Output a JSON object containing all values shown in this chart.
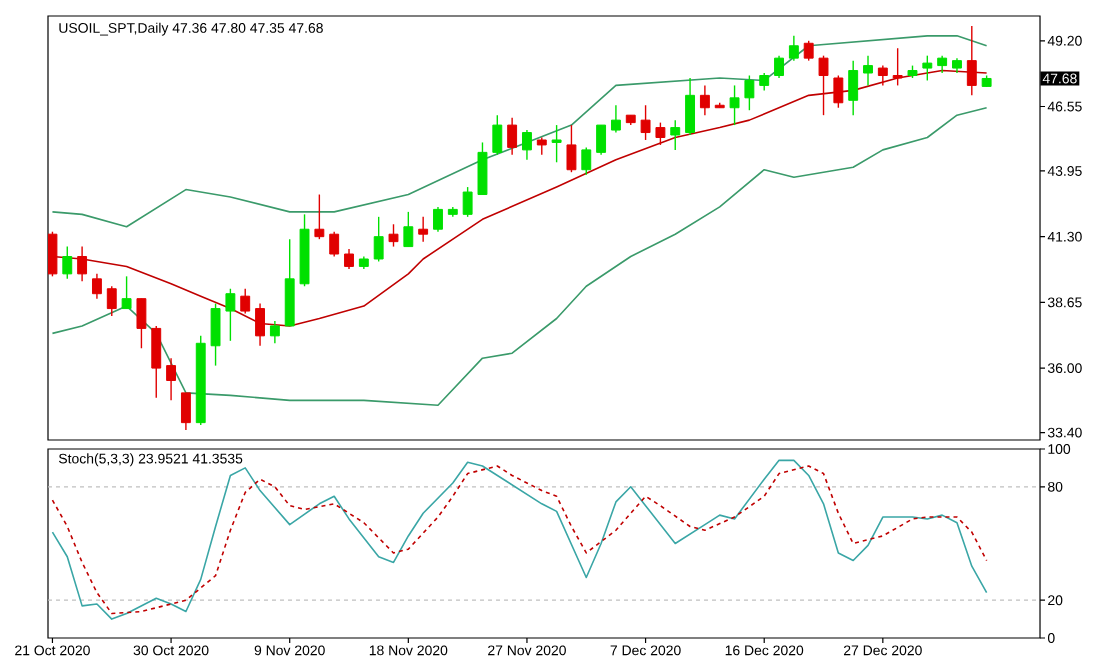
{
  "chart_data": [
    {
      "type": "candlestick",
      "title": "USOIL_SPT,Daily 47.36 47.80 47.35 47.68",
      "tick_labels": "y",
      "categories": [
        null,
        null,
        null,
        null,
        null,
        null,
        null,
        null,
        null,
        null,
        null,
        null,
        null,
        null,
        null,
        null,
        null,
        null,
        null,
        null,
        null,
        null,
        null,
        null,
        null,
        null,
        null,
        null,
        null,
        null,
        null,
        null,
        null,
        null,
        null,
        null,
        null,
        null,
        null,
        null,
        null,
        null,
        null,
        null,
        null,
        null,
        null,
        null,
        null,
        null,
        null,
        null,
        null,
        null,
        null,
        null,
        null,
        null,
        null,
        null,
        null,
        null,
        null,
        null
      ],
      "ylim": [
        33.1,
        50.2
      ],
      "yticks": [
        {
          "value": 49.2,
          "label": "49.20"
        },
        {
          "value": 46.55,
          "label": "46.55"
        },
        {
          "value": 43.95,
          "label": "43.95"
        },
        {
          "value": 41.3,
          "label": "41.30"
        },
        {
          "value": 38.65,
          "label": "38.65"
        },
        {
          "value": 36.0,
          "label": "36.00"
        },
        {
          "value": 33.4,
          "label": "33.40"
        }
      ],
      "ohlc": [
        [
          41.4,
          41.5,
          39.7,
          39.8
        ],
        [
          39.8,
          40.9,
          39.6,
          40.5
        ],
        [
          40.5,
          40.9,
          39.5,
          39.8
        ],
        [
          39.6,
          39.8,
          38.8,
          39.0
        ],
        [
          39.2,
          39.3,
          38.1,
          38.4
        ],
        [
          38.4,
          39.7,
          38.4,
          38.8
        ],
        [
          38.8,
          38.8,
          36.8,
          37.6
        ],
        [
          37.6,
          37.7,
          34.8,
          36.0
        ],
        [
          36.1,
          36.4,
          34.7,
          35.5
        ],
        [
          35.0,
          35.0,
          33.5,
          33.8
        ],
        [
          33.8,
          37.3,
          33.7,
          37.0
        ],
        [
          36.9,
          38.6,
          36.1,
          38.4
        ],
        [
          38.3,
          39.2,
          37.1,
          39.0
        ],
        [
          38.9,
          39.2,
          38.2,
          38.3
        ],
        [
          38.4,
          38.6,
          36.9,
          37.3
        ],
        [
          37.3,
          37.9,
          37.0,
          37.7
        ],
        [
          37.7,
          41.2,
          37.7,
          39.6
        ],
        [
          39.4,
          42.2,
          39.3,
          41.6
        ],
        [
          41.6,
          43.0,
          41.2,
          41.3
        ],
        [
          41.4,
          41.5,
          40.5,
          40.6
        ],
        [
          40.6,
          40.8,
          40.0,
          40.1
        ],
        [
          40.1,
          40.5,
          40.0,
          40.4
        ],
        [
          40.4,
          42.1,
          40.3,
          41.3
        ],
        [
          41.4,
          41.8,
          40.9,
          41.1
        ],
        [
          40.9,
          42.3,
          40.9,
          41.7
        ],
        [
          41.6,
          42.1,
          41.1,
          41.4
        ],
        [
          41.6,
          42.5,
          41.5,
          42.4
        ],
        [
          42.2,
          42.5,
          42.1,
          42.4
        ],
        [
          42.2,
          43.3,
          42.1,
          43.1
        ],
        [
          43.0,
          45.1,
          43.0,
          44.7
        ],
        [
          44.7,
          46.2,
          44.6,
          45.8
        ],
        [
          45.8,
          46.1,
          44.6,
          44.9
        ],
        [
          44.8,
          45.6,
          44.4,
          45.5
        ],
        [
          45.2,
          45.3,
          44.6,
          45.0
        ],
        [
          45.1,
          45.8,
          44.3,
          45.2
        ],
        [
          45.0,
          45.8,
          43.9,
          44.0
        ],
        [
          44.0,
          44.9,
          43.8,
          44.8
        ],
        [
          44.7,
          45.8,
          44.6,
          45.8
        ],
        [
          45.6,
          46.6,
          45.5,
          46.0
        ],
        [
          46.2,
          46.2,
          45.8,
          45.9
        ],
        [
          46.0,
          46.6,
          45.2,
          45.5
        ],
        [
          45.7,
          45.9,
          45.0,
          45.3
        ],
        [
          45.4,
          46.0,
          44.8,
          45.7
        ],
        [
          45.5,
          47.7,
          45.4,
          47.0
        ],
        [
          47.0,
          47.4,
          46.2,
          46.5
        ],
        [
          46.6,
          46.7,
          46.5,
          46.5
        ],
        [
          46.5,
          47.4,
          45.8,
          46.9
        ],
        [
          46.9,
          47.8,
          46.4,
          47.6
        ],
        [
          47.4,
          47.9,
          47.2,
          47.8
        ],
        [
          47.8,
          48.6,
          47.7,
          48.5
        ],
        [
          48.5,
          49.4,
          48.4,
          49.0
        ],
        [
          49.1,
          49.2,
          48.4,
          48.5
        ],
        [
          48.5,
          48.6,
          46.2,
          47.8
        ],
        [
          47.7,
          47.8,
          46.5,
          46.7
        ],
        [
          46.8,
          48.4,
          46.2,
          48.0
        ],
        [
          47.9,
          48.6,
          47.4,
          48.2
        ],
        [
          48.1,
          48.2,
          47.4,
          47.8
        ],
        [
          47.8,
          48.9,
          47.4,
          47.7
        ],
        [
          47.8,
          48.2,
          47.7,
          48.0
        ],
        [
          48.1,
          48.6,
          47.6,
          48.3
        ],
        [
          48.2,
          48.6,
          47.9,
          48.5
        ],
        [
          48.1,
          48.5,
          47.9,
          48.4
        ],
        [
          48.4,
          49.8,
          47.0,
          47.4
        ],
        [
          47.36,
          47.8,
          47.35,
          47.68
        ]
      ],
      "colors": [
        "#e00000",
        "#00e000",
        "#e00000",
        "#e00000",
        "#e00000",
        "#00e000",
        "#e00000",
        "#e00000",
        "#e00000",
        "#e00000",
        "#00e000",
        "#00e000",
        "#00e000",
        "#e00000",
        "#e00000",
        "#00e000",
        "#00e000",
        "#00e000",
        "#e00000",
        "#e00000",
        "#e00000",
        "#00e000",
        "#00e000",
        "#e00000",
        "#00e000",
        "#e00000",
        "#00e000",
        "#00e000",
        "#00e000",
        "#00e000",
        "#00e000",
        "#e00000",
        "#00e000",
        "#e00000",
        "#00e000",
        "#e00000",
        "#00e000",
        "#00e000",
        "#00e000",
        "#e00000",
        "#e00000",
        "#e00000",
        "#00e000",
        "#00e000",
        "#e00000",
        "#e00000",
        "#00e000",
        "#00e000",
        "#00e000",
        "#00e000",
        "#00e000",
        "#e00000",
        "#e00000",
        "#e00000",
        "#00e000",
        "#00e000",
        "#e00000",
        "#e00000",
        "#00e000",
        "#00e000",
        "#00e000",
        "#00e000",
        "#e00000",
        "#00e000"
      ],
      "series": [
        {
          "type": "line",
          "color": "#3a9a6a",
          "values": [
            42.3,
            null,
            42.2,
            null,
            null,
            41.7,
            null,
            null,
            null,
            43.2,
            null,
            null,
            42.9,
            null,
            null,
            null,
            42.3,
            null,
            null,
            42.3,
            null,
            null,
            null,
            null,
            43.0,
            null,
            null,
            null,
            null,
            44.4,
            null,
            null,
            null,
            null,
            null,
            45.8,
            null,
            null,
            47.4,
            null,
            null,
            null,
            null,
            null,
            null,
            47.7,
            null,
            null,
            47.6,
            null,
            null,
            49.0,
            null,
            null,
            null,
            49.2,
            null,
            null,
            null,
            49.4,
            null,
            49.4,
            null,
            49.0
          ]
        },
        {
          "type": "line",
          "color": "#c00000",
          "values": [
            40.5,
            null,
            40.4,
            null,
            null,
            40.1,
            null,
            null,
            39.4,
            null,
            38.9,
            null,
            38.4,
            null,
            37.8,
            null,
            37.7,
            null,
            38.0,
            null,
            null,
            38.5,
            null,
            null,
            39.8,
            40.4,
            null,
            null,
            null,
            42.0,
            null,
            null,
            null,
            null,
            43.3,
            null,
            null,
            null,
            44.4,
            null,
            null,
            null,
            45.3,
            null,
            null,
            45.7,
            null,
            46.0,
            null,
            null,
            null,
            47.0,
            null,
            null,
            47.2,
            null,
            null,
            47.7,
            null,
            null,
            48.0,
            null,
            null,
            47.9
          ]
        },
        {
          "type": "line",
          "color": "#3a9a6a",
          "values": [
            37.4,
            null,
            37.7,
            null,
            null,
            38.5,
            null,
            37.4,
            null,
            35.0,
            null,
            null,
            34.9,
            null,
            null,
            null,
            34.7,
            null,
            null,
            null,
            null,
            34.7,
            null,
            null,
            null,
            null,
            34.5,
            null,
            null,
            36.4,
            null,
            36.6,
            null,
            null,
            38.0,
            null,
            39.3,
            null,
            null,
            40.5,
            null,
            null,
            41.4,
            null,
            null,
            42.5,
            null,
            null,
            44.0,
            null,
            43.7,
            null,
            null,
            null,
            44.1,
            null,
            44.8,
            null,
            null,
            45.3,
            null,
            46.2,
            null,
            46.5
          ]
        }
      ],
      "annotations": [
        "47.68"
      ]
    },
    {
      "type": "line",
      "title": "Stoch(5,3,3) 23.9521 41.3535",
      "categories": [
        "21 Oct 2020",
        null,
        null,
        null,
        null,
        null,
        null,
        null,
        "30 Oct 2020",
        null,
        null,
        null,
        null,
        null,
        null,
        null,
        "9 Nov 2020",
        null,
        null,
        null,
        null,
        null,
        null,
        null,
        "18 Nov 2020",
        null,
        null,
        null,
        null,
        null,
        null,
        null,
        "27 Nov 2020",
        null,
        null,
        null,
        null,
        null,
        null,
        null,
        "7 Dec 2020",
        null,
        null,
        null,
        null,
        null,
        null,
        null,
        "16 Dec 2020",
        null,
        null,
        null,
        null,
        null,
        null,
        null,
        "27 Dec 2020",
        null,
        null,
        null,
        null,
        null,
        null,
        null
      ],
      "ylim": [
        0,
        100
      ],
      "yticks": [
        0,
        20,
        80,
        100
      ],
      "series": [
        {
          "color": "#3aa6a6",
          "line_style": "solid",
          "values": [
            56,
            43,
            17,
            18,
            10,
            13,
            null,
            21,
            18,
            14,
            31,
            59,
            86,
            90,
            78,
            null,
            60,
            null,
            71,
            75,
            63,
            null,
            43,
            40,
            54,
            66,
            null,
            82,
            93,
            91,
            null,
            81,
            null,
            71,
            67,
            null,
            32,
            50,
            72,
            80,
            70,
            null,
            50,
            null,
            60,
            65,
            63,
            null,
            84,
            94,
            94,
            86,
            71,
            45,
            41,
            49,
            64,
            null,
            64,
            63,
            65,
            61,
            38,
            24
          ]
        },
        {
          "color": "#c00000",
          "line_style": "dashed",
          "values": [
            73,
            59,
            40,
            24,
            13,
            null,
            14,
            null,
            18,
            20,
            null,
            33,
            57,
            77,
            84,
            80,
            70,
            68,
            null,
            71,
            null,
            61,
            null,
            45,
            47,
            null,
            64,
            75,
            87,
            null,
            91,
            86,
            null,
            78,
            75,
            59,
            45,
            null,
            57,
            null,
            75,
            70,
            null,
            59,
            57,
            null,
            64,
            null,
            75,
            87,
            null,
            91,
            87,
            66,
            50,
            null,
            54,
            null,
            63,
            64,
            null,
            64,
            56,
            41
          ]
        }
      ],
      "ref_lines": [
        {
          "axis": "y",
          "value": 20,
          "line_style": "dashed",
          "color": "#c0c0c0"
        },
        {
          "axis": "y",
          "value": 80,
          "line_style": "dashed",
          "color": "#c0c0c0"
        }
      ]
    }
  ]
}
